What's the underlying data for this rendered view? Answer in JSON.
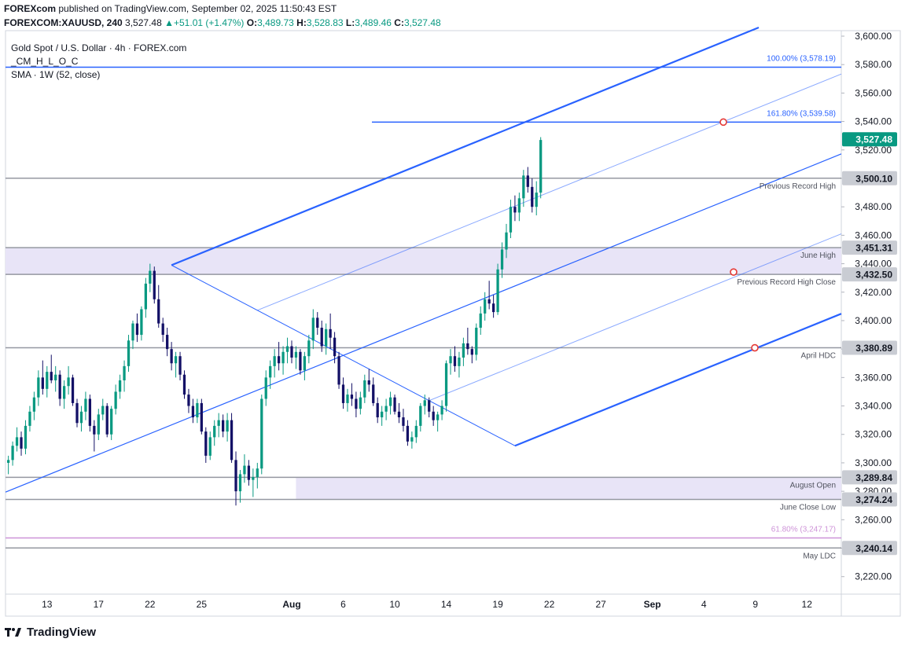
{
  "header": {
    "publisher": "FOREXcom",
    "published_text": "published on TradingView.com, September 02, 2025 11:50:43 EST",
    "ticker": "FOREXCOM:XAUUSD, 240",
    "last": "3,527.48",
    "change_arrow": "▲",
    "change": "+51.01 (+1.47%)",
    "open_label": "O:",
    "open": "3,489.73",
    "high_label": "H:",
    "high": "3,528.83",
    "low_label": "L:",
    "low": "3,489.46",
    "close_label": "C:",
    "close": "3,527.48"
  },
  "legend": {
    "title": "Gold Spot / U.S. Dollar · 4h · FOREX.com",
    "indicator1": "_CM_H_L_O_C",
    "indicator2": "SMA · 1W (52, close)"
  },
  "footer": {
    "brand": "TradingView"
  },
  "colors": {
    "up": "#089981",
    "down": "#131066",
    "channel": "#2962ff",
    "level": "#9598a1",
    "fib": "#ce93d8",
    "zone": "#e8e4f7"
  },
  "chart_data": {
    "type": "candlestick",
    "title": "Gold Spot / U.S. Dollar · 4h · FOREX.com",
    "y_axis": {
      "min": 3210,
      "max": 3610,
      "ticks": [
        3220,
        3240,
        3260,
        3280,
        3300,
        3320,
        3340,
        3360,
        3380,
        3400,
        3420,
        3440,
        3460,
        3480,
        3500,
        3520,
        3540,
        3560,
        3580,
        3600
      ],
      "tick_labels": [
        "3,220.00",
        "3,240.00",
        "3,260.00",
        "3,280.00",
        "3,300.00",
        "3,320.00",
        "3,340.00",
        "3,360.00",
        "3,380.00",
        "3,400.00",
        "3,420.00",
        "3,440.00",
        "3,460.00",
        "3,480.00",
        "3,500.00",
        "3,520.00",
        "3,540.00",
        "3,560.00",
        "3,580.00",
        "3,600.00"
      ]
    },
    "x_axis": {
      "ticks": [
        {
          "label": "13",
          "bar": 9,
          "bold": false
        },
        {
          "label": "17",
          "bar": 21,
          "bold": false
        },
        {
          "label": "22",
          "bar": 33,
          "bold": false
        },
        {
          "label": "25",
          "bar": 45,
          "bold": false
        },
        {
          "label": "Aug",
          "bar": 66,
          "bold": true
        },
        {
          "label": "6",
          "bar": 78,
          "bold": false
        },
        {
          "label": "10",
          "bar": 90,
          "bold": false
        },
        {
          "label": "14",
          "bar": 102,
          "bold": false
        },
        {
          "label": "19",
          "bar": 114,
          "bold": false
        },
        {
          "label": "22",
          "bar": 126,
          "bold": false
        },
        {
          "label": "27",
          "bar": 138,
          "bold": false
        },
        {
          "label": "Sep",
          "bar": 150,
          "bold": true
        },
        {
          "label": "4",
          "bar": 162,
          "bold": false
        },
        {
          "label": "9",
          "bar": 174,
          "bold": false
        },
        {
          "label": "12",
          "bar": 186,
          "bold": false
        }
      ]
    },
    "candles": [
      [
        3300,
        3305,
        3292,
        3302
      ],
      [
        3302,
        3315,
        3298,
        3312
      ],
      [
        3312,
        3325,
        3308,
        3318
      ],
      [
        3318,
        3322,
        3305,
        3310
      ],
      [
        3310,
        3330,
        3306,
        3326
      ],
      [
        3326,
        3340,
        3322,
        3336
      ],
      [
        3336,
        3350,
        3330,
        3346
      ],
      [
        3346,
        3365,
        3340,
        3360
      ],
      [
        3360,
        3372,
        3348,
        3352
      ],
      [
        3352,
        3368,
        3346,
        3364
      ],
      [
        3364,
        3376,
        3356,
        3358
      ],
      [
        3358,
        3368,
        3350,
        3362
      ],
      [
        3362,
        3365,
        3340,
        3345
      ],
      [
        3345,
        3358,
        3338,
        3354
      ],
      [
        3354,
        3368,
        3348,
        3360
      ],
      [
        3360,
        3362,
        3340,
        3342
      ],
      [
        3342,
        3345,
        3325,
        3328
      ],
      [
        3328,
        3340,
        3322,
        3336
      ],
      [
        3336,
        3350,
        3330,
        3345
      ],
      [
        3345,
        3348,
        3322,
        3326
      ],
      [
        3326,
        3330,
        3308,
        3320
      ],
      [
        3320,
        3338,
        3316,
        3334
      ],
      [
        3334,
        3345,
        3330,
        3340
      ],
      [
        3340,
        3342,
        3318,
        3320
      ],
      [
        3320,
        3340,
        3316,
        3338
      ],
      [
        3338,
        3355,
        3334,
        3350
      ],
      [
        3350,
        3362,
        3345,
        3358
      ],
      [
        3358,
        3372,
        3350,
        3368
      ],
      [
        3368,
        3390,
        3364,
        3386
      ],
      [
        3386,
        3400,
        3380,
        3398
      ],
      [
        3398,
        3405,
        3385,
        3390
      ],
      [
        3390,
        3410,
        3386,
        3408
      ],
      [
        3408,
        3430,
        3402,
        3426
      ],
      [
        3426,
        3440,
        3420,
        3435
      ],
      [
        3435,
        3438,
        3412,
        3415
      ],
      [
        3415,
        3425,
        3395,
        3398
      ],
      [
        3398,
        3402,
        3385,
        3390
      ],
      [
        3390,
        3395,
        3375,
        3380
      ],
      [
        3380,
        3385,
        3365,
        3370
      ],
      [
        3370,
        3378,
        3360,
        3375
      ],
      [
        3375,
        3378,
        3358,
        3362
      ],
      [
        3362,
        3365,
        3345,
        3348
      ],
      [
        3348,
        3352,
        3335,
        3340
      ],
      [
        3340,
        3345,
        3328,
        3332
      ],
      [
        3332,
        3345,
        3328,
        3342
      ],
      [
        3342,
        3345,
        3320,
        3322
      ],
      [
        3322,
        3325,
        3300,
        3305
      ],
      [
        3305,
        3322,
        3302,
        3318
      ],
      [
        3318,
        3330,
        3312,
        3326
      ],
      [
        3326,
        3335,
        3318,
        3330
      ],
      [
        3330,
        3334,
        3318,
        3322
      ],
      [
        3322,
        3335,
        3315,
        3330
      ],
      [
        3330,
        3335,
        3300,
        3302
      ],
      [
        3302,
        3308,
        3270,
        3280
      ],
      [
        3280,
        3295,
        3272,
        3292
      ],
      [
        3292,
        3306,
        3286,
        3298
      ],
      [
        3298,
        3302,
        3284,
        3288
      ],
      [
        3288,
        3296,
        3276,
        3290
      ],
      [
        3290,
        3300,
        3282,
        3296
      ],
      [
        3296,
        3348,
        3292,
        3345
      ],
      [
        3345,
        3365,
        3340,
        3360
      ],
      [
        3360,
        3372,
        3352,
        3368
      ],
      [
        3368,
        3380,
        3360,
        3375
      ],
      [
        3375,
        3385,
        3365,
        3370
      ],
      [
        3370,
        3382,
        3362,
        3378
      ],
      [
        3378,
        3388,
        3370,
        3382
      ],
      [
        3382,
        3386,
        3370,
        3374
      ],
      [
        3374,
        3382,
        3366,
        3378
      ],
      [
        3378,
        3380,
        3362,
        3365
      ],
      [
        3365,
        3378,
        3358,
        3375
      ],
      [
        3375,
        3390,
        3370,
        3386
      ],
      [
        3386,
        3408,
        3380,
        3402
      ],
      [
        3402,
        3406,
        3390,
        3395
      ],
      [
        3395,
        3400,
        3378,
        3382
      ],
      [
        3382,
        3398,
        3376,
        3394
      ],
      [
        3394,
        3405,
        3380,
        3388
      ],
      [
        3388,
        3392,
        3370,
        3375
      ],
      [
        3375,
        3378,
        3352,
        3355
      ],
      [
        3355,
        3360,
        3338,
        3342
      ],
      [
        3342,
        3352,
        3336,
        3348
      ],
      [
        3348,
        3356,
        3340,
        3345
      ],
      [
        3345,
        3350,
        3332,
        3338
      ],
      [
        3338,
        3350,
        3334,
        3346
      ],
      [
        3346,
        3362,
        3342,
        3358
      ],
      [
        3358,
        3366,
        3350,
        3355
      ],
      [
        3355,
        3360,
        3340,
        3342
      ],
      [
        3342,
        3346,
        3328,
        3332
      ],
      [
        3332,
        3340,
        3326,
        3336
      ],
      [
        3336,
        3345,
        3330,
        3340
      ],
      [
        3340,
        3350,
        3334,
        3346
      ],
      [
        3346,
        3348,
        3334,
        3336
      ],
      [
        3336,
        3342,
        3328,
        3332
      ],
      [
        3332,
        3338,
        3322,
        3326
      ],
      [
        3326,
        3330,
        3312,
        3315
      ],
      [
        3315,
        3322,
        3310,
        3318
      ],
      [
        3318,
        3330,
        3314,
        3326
      ],
      [
        3326,
        3342,
        3322,
        3340
      ],
      [
        3340,
        3348,
        3334,
        3344
      ],
      [
        3344,
        3346,
        3332,
        3336
      ],
      [
        3336,
        3340,
        3326,
        3330
      ],
      [
        3330,
        3336,
        3322,
        3334
      ],
      [
        3334,
        3344,
        3330,
        3340
      ],
      [
        3340,
        3372,
        3336,
        3370
      ],
      [
        3370,
        3380,
        3362,
        3375
      ],
      [
        3375,
        3382,
        3364,
        3368
      ],
      [
        3368,
        3378,
        3360,
        3374
      ],
      [
        3374,
        3388,
        3368,
        3384
      ],
      [
        3384,
        3395,
        3376,
        3380
      ],
      [
        3380,
        3382,
        3370,
        3376
      ],
      [
        3376,
        3398,
        3372,
        3395
      ],
      [
        3395,
        3410,
        3390,
        3405
      ],
      [
        3405,
        3420,
        3400,
        3415
      ],
      [
        3415,
        3428,
        3408,
        3412
      ],
      [
        3412,
        3418,
        3402,
        3406
      ],
      [
        3406,
        3440,
        3404,
        3436
      ],
      [
        3436,
        3455,
        3430,
        3450
      ],
      [
        3450,
        3468,
        3444,
        3462
      ],
      [
        3462,
        3485,
        3458,
        3480
      ],
      [
        3480,
        3488,
        3470,
        3476
      ],
      [
        3476,
        3490,
        3470,
        3486
      ],
      [
        3486,
        3506,
        3480,
        3502
      ],
      [
        3502,
        3508,
        3490,
        3494
      ],
      [
        3494,
        3500,
        3476,
        3480
      ],
      [
        3480,
        3498,
        3474,
        3490
      ],
      [
        3490,
        3529,
        3486,
        3527
      ]
    ],
    "x_start_bar": -0.3,
    "pixels_per_bar": 5.46,
    "levels": [
      {
        "name": "Previous Record High",
        "value": 3500.1,
        "badge": "3,500.10"
      },
      {
        "name": "June High",
        "value": 3451.31,
        "badge": "3,451.31"
      },
      {
        "name": "Previous Record High Close",
        "value": 3432.5,
        "badge": "3,432.50"
      },
      {
        "name": "April HDC",
        "value": 3380.89,
        "badge": "3,380.89"
      },
      {
        "name": "August Open",
        "value": 3289.84,
        "badge": "3,289.84"
      },
      {
        "name": "June Close Low",
        "value": 3274.24,
        "badge": "3,274.24"
      },
      {
        "name": "May LDC",
        "value": 3240.14,
        "badge": "3,240.14"
      }
    ],
    "current_price": {
      "value": 3527.48,
      "badge": "3,527.48"
    },
    "fib_levels": [
      {
        "label": "100.00% (3,578.19)",
        "value": 3578.19
      },
      {
        "label": "161.80% (3,539.58)",
        "value": 3539.58
      },
      {
        "label": "61.80% (3,247.17)",
        "value": 3247.17
      }
    ],
    "zones": [
      {
        "from": 3432.5,
        "to": 3451.31,
        "start_bar": -1
      },
      {
        "from": 3274.24,
        "to": 3289.84,
        "start_bar": 67
      }
    ],
    "pitchfork": {
      "pivots": [
        {
          "bar": 38,
          "price": 3439
        },
        {
          "bar": 118,
          "price": 3312
        },
        {
          "bar": 174.5,
          "price": 3381
        }
      ],
      "note": "upper/lower channel lines with median and inner parallels"
    }
  }
}
